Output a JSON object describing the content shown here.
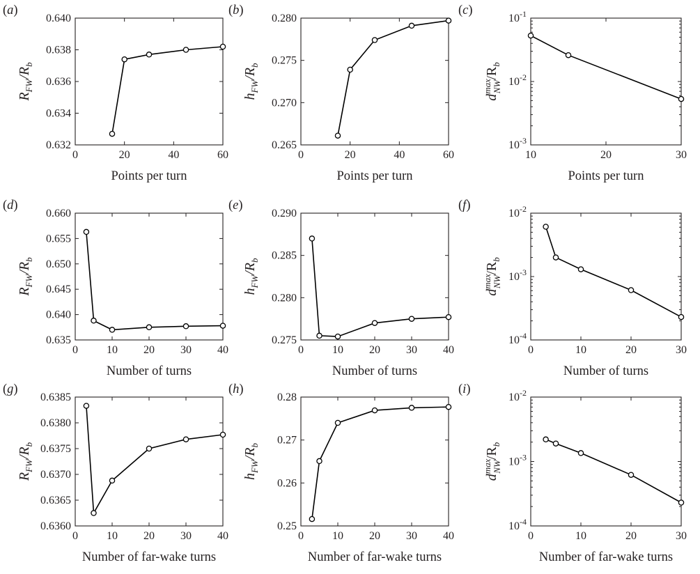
{
  "chart_data": [
    {
      "id": "a",
      "panel_label": "(a)",
      "type": "line",
      "xlabel": "Points per turn",
      "ylabel": {
        "base": "R",
        "sub": "FW",
        "sup": "",
        "den": "R",
        "den_sub": "b"
      },
      "xlim": [
        0,
        60
      ],
      "ylim": [
        0.632,
        0.64
      ],
      "yscale": "linear",
      "x_ticks": [
        0,
        20,
        40,
        60
      ],
      "x_tick_labels": [
        "0",
        "20",
        "40",
        "60"
      ],
      "y_ticks": [
        0.632,
        0.634,
        0.636,
        0.638,
        0.64
      ],
      "y_tick_labels": [
        "0.632",
        "0.634",
        "0.636",
        "0.638",
        "0.640"
      ],
      "series": [
        {
          "x": [
            15,
            20,
            30,
            45,
            60
          ],
          "y": [
            0.6327,
            0.6374,
            0.6377,
            0.638,
            0.6382
          ],
          "marker": "circle",
          "color": "#000000"
        }
      ]
    },
    {
      "id": "b",
      "panel_label": "(b)",
      "type": "line",
      "xlabel": "Points per turn",
      "ylabel": {
        "base": "h",
        "sub": "FW",
        "sup": "",
        "den": "R",
        "den_sub": "b"
      },
      "xlim": [
        0,
        60
      ],
      "ylim": [
        0.265,
        0.28
      ],
      "yscale": "linear",
      "x_ticks": [
        0,
        20,
        40,
        60
      ],
      "x_tick_labels": [
        "0",
        "20",
        "40",
        "60"
      ],
      "y_ticks": [
        0.265,
        0.27,
        0.275,
        0.28
      ],
      "y_tick_labels": [
        "0.265",
        "0.270",
        "0.275",
        "0.280"
      ],
      "series": [
        {
          "x": [
            15,
            20,
            30,
            45,
            60
          ],
          "y": [
            0.2661,
            0.2739,
            0.2774,
            0.2791,
            0.2797
          ],
          "marker": "circle",
          "color": "#000000"
        }
      ]
    },
    {
      "id": "c",
      "panel_label": "(c)",
      "type": "line",
      "xlabel": "Points per turn",
      "ylabel": {
        "base": "d",
        "sub": "NW",
        "sup": "max",
        "den": "R",
        "den_sub": "b"
      },
      "xlim": [
        10,
        30
      ],
      "ylim": [
        0.001,
        0.1
      ],
      "yscale": "log",
      "x_ticks": [
        10,
        20,
        30
      ],
      "x_tick_labels": [
        "10",
        "20",
        "30"
      ],
      "y_ticks": [
        0.001,
        0.01,
        0.1
      ],
      "y_tick_labels": [
        {
          "base": "10",
          "exp": "-3"
        },
        {
          "base": "10",
          "exp": "-2"
        },
        {
          "base": "10",
          "exp": "-1"
        }
      ],
      "series": [
        {
          "x": [
            10,
            15,
            30
          ],
          "y": [
            0.053,
            0.026,
            0.0053
          ],
          "marker": "circle",
          "color": "#000000"
        }
      ]
    },
    {
      "id": "d",
      "panel_label": "(d)",
      "type": "line",
      "xlabel": "Number of turns",
      "ylabel": {
        "base": "R",
        "sub": "FW",
        "sup": "",
        "den": "R",
        "den_sub": "b"
      },
      "xlim": [
        0,
        40
      ],
      "ylim": [
        0.635,
        0.66
      ],
      "yscale": "linear",
      "x_ticks": [
        0,
        10,
        20,
        30,
        40
      ],
      "x_tick_labels": [
        "0",
        "10",
        "20",
        "30",
        "40"
      ],
      "y_ticks": [
        0.635,
        0.64,
        0.645,
        0.65,
        0.655,
        0.66
      ],
      "y_tick_labels": [
        "0.635",
        "0.640",
        "0.645",
        "0.650",
        "0.655",
        "0.660"
      ],
      "series": [
        {
          "x": [
            3,
            5,
            10,
            20,
            30,
            40
          ],
          "y": [
            0.6563,
            0.6388,
            0.637,
            0.6375,
            0.6377,
            0.6378
          ],
          "marker": "circle",
          "color": "#000000"
        }
      ]
    },
    {
      "id": "e",
      "panel_label": "(e)",
      "type": "line",
      "xlabel": "Number of turns",
      "ylabel": {
        "base": "h",
        "sub": "FW",
        "sup": "",
        "den": "R",
        "den_sub": "b"
      },
      "xlim": [
        0,
        40
      ],
      "ylim": [
        0.275,
        0.29
      ],
      "yscale": "linear",
      "x_ticks": [
        0,
        10,
        20,
        30,
        40
      ],
      "x_tick_labels": [
        "0",
        "10",
        "20",
        "30",
        "40"
      ],
      "y_ticks": [
        0.275,
        0.28,
        0.285,
        0.29
      ],
      "y_tick_labels": [
        "0.275",
        "0.280",
        "0.285",
        "0.290"
      ],
      "series": [
        {
          "x": [
            3,
            5,
            10,
            20,
            30,
            40
          ],
          "y": [
            0.287,
            0.2755,
            0.2754,
            0.277,
            0.2775,
            0.2777
          ],
          "marker": "circle",
          "color": "#000000"
        }
      ]
    },
    {
      "id": "f",
      "panel_label": "(f)",
      "type": "line",
      "xlabel": "Number of turns",
      "ylabel": {
        "base": "d",
        "sub": "NW",
        "sup": "max",
        "den": "R",
        "den_sub": "b"
      },
      "xlim": [
        0,
        30
      ],
      "ylim": [
        0.0001,
        0.01
      ],
      "yscale": "log",
      "x_ticks": [
        0,
        10,
        20,
        30
      ],
      "x_tick_labels": [
        "0",
        "10",
        "20",
        "30"
      ],
      "y_ticks": [
        0.0001,
        0.001,
        0.01
      ],
      "y_tick_labels": [
        {
          "base": "10",
          "exp": "-4"
        },
        {
          "base": "10",
          "exp": "-3"
        },
        {
          "base": "10",
          "exp": "-2"
        }
      ],
      "series": [
        {
          "x": [
            3,
            5,
            10,
            20,
            30
          ],
          "y": [
            0.0061,
            0.002,
            0.0013,
            0.00061,
            0.00023
          ],
          "marker": "circle",
          "color": "#000000"
        }
      ]
    },
    {
      "id": "g",
      "panel_label": "(g)",
      "type": "line",
      "xlabel": "Number of far-wake turns",
      "ylabel": {
        "base": "R",
        "sub": "FW",
        "sup": "",
        "den": "R",
        "den_sub": "b"
      },
      "xlim": [
        0,
        40
      ],
      "ylim": [
        0.636,
        0.6385
      ],
      "yscale": "linear",
      "x_ticks": [
        0,
        10,
        20,
        30,
        40
      ],
      "x_tick_labels": [
        "0",
        "10",
        "20",
        "30",
        "40"
      ],
      "y_ticks": [
        0.636,
        0.6365,
        0.637,
        0.6375,
        0.638,
        0.6385
      ],
      "y_tick_labels": [
        "0.6360",
        "0.6365",
        "0.6370",
        "0.6375",
        "0.6380",
        "0.6385"
      ],
      "series": [
        {
          "x": [
            3,
            5,
            10,
            20,
            30,
            40
          ],
          "y": [
            0.63833,
            0.63625,
            0.63688,
            0.6375,
            0.63768,
            0.63777
          ],
          "marker": "circle",
          "color": "#000000"
        }
      ]
    },
    {
      "id": "h",
      "panel_label": "(h)",
      "type": "line",
      "xlabel": "Number of far-wake turns",
      "ylabel": {
        "base": "h",
        "sub": "FW",
        "sup": "",
        "den": "R",
        "den_sub": "b"
      },
      "xlim": [
        0,
        40
      ],
      "ylim": [
        0.25,
        0.28
      ],
      "yscale": "linear",
      "x_ticks": [
        0,
        10,
        20,
        30,
        40
      ],
      "x_tick_labels": [
        "0",
        "10",
        "20",
        "30",
        "40"
      ],
      "y_ticks": [
        0.25,
        0.26,
        0.27,
        0.28
      ],
      "y_tick_labels": [
        "0.25",
        "0.26",
        "0.27",
        "0.28"
      ],
      "series": [
        {
          "x": [
            3,
            5,
            10,
            20,
            30,
            40
          ],
          "y": [
            0.2516,
            0.2651,
            0.274,
            0.2769,
            0.2775,
            0.2777
          ],
          "marker": "circle",
          "color": "#000000"
        }
      ]
    },
    {
      "id": "i",
      "panel_label": "(i)",
      "type": "line",
      "xlabel": "Number of far-wake turns",
      "ylabel": {
        "base": "d",
        "sub": "NW",
        "sup": "max",
        "den": "R",
        "den_sub": "b"
      },
      "xlim": [
        0,
        30
      ],
      "ylim": [
        0.0001,
        0.01
      ],
      "yscale": "log",
      "x_ticks": [
        0,
        10,
        20,
        30
      ],
      "x_tick_labels": [
        "0",
        "10",
        "20",
        "30"
      ],
      "y_ticks": [
        0.0001,
        0.001,
        0.01
      ],
      "y_tick_labels": [
        {
          "base": "10",
          "exp": "-4"
        },
        {
          "base": "10",
          "exp": "-3"
        },
        {
          "base": "10",
          "exp": "-2"
        }
      ],
      "series": [
        {
          "x": [
            3,
            5,
            10,
            20,
            30
          ],
          "y": [
            0.0022,
            0.0019,
            0.00135,
            0.00062,
            0.00023
          ],
          "marker": "circle",
          "color": "#000000"
        }
      ]
    }
  ]
}
